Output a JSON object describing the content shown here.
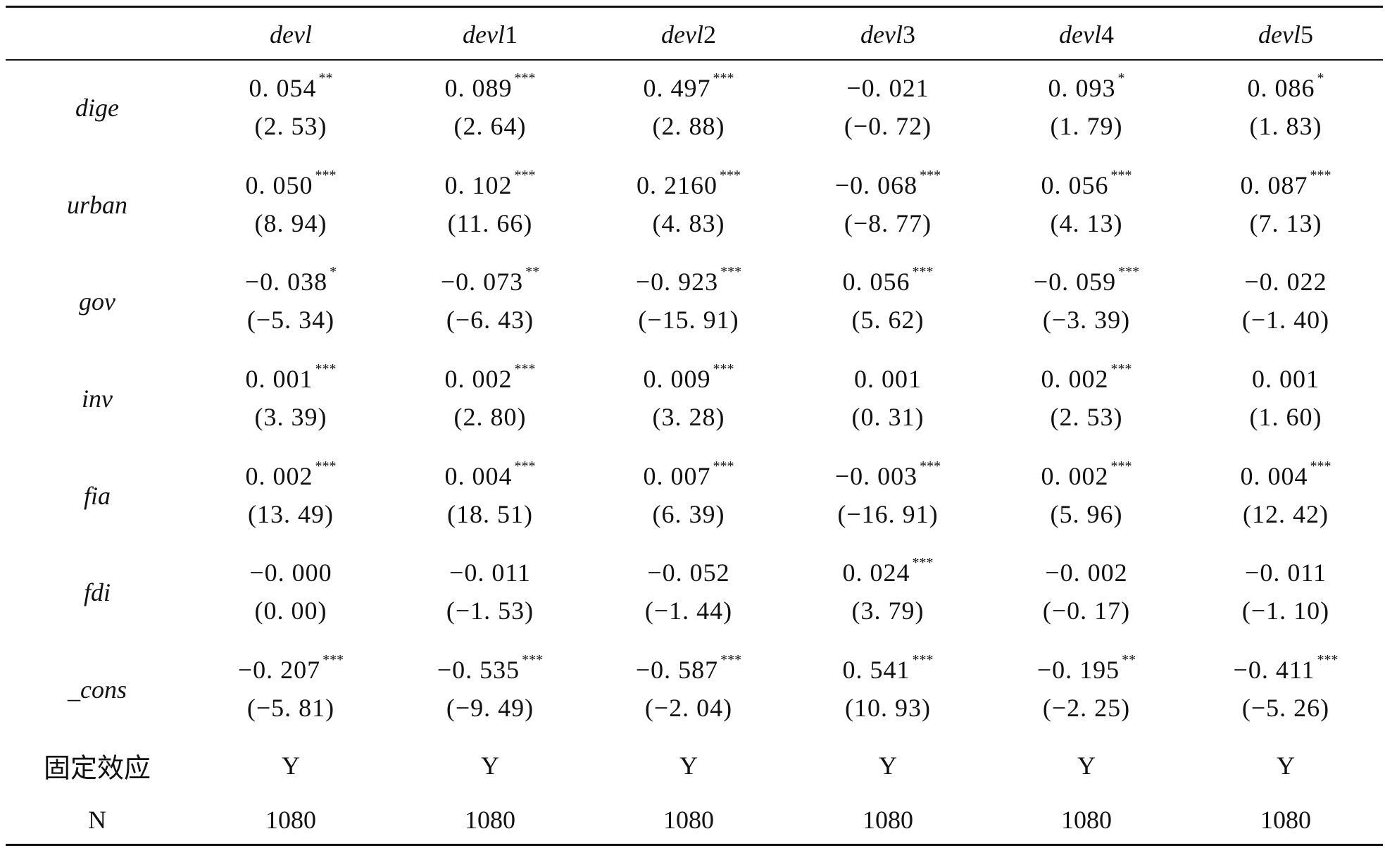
{
  "table": {
    "columns": [
      {
        "base": "devl",
        "num": ""
      },
      {
        "base": "devl",
        "num": "1"
      },
      {
        "base": "devl",
        "num": "2"
      },
      {
        "base": "devl",
        "num": "3"
      },
      {
        "base": "devl",
        "num": "4"
      },
      {
        "base": "devl",
        "num": "5"
      }
    ],
    "rows": [
      {
        "label": "dige",
        "cells": [
          {
            "coef": "0. 054",
            "stars": "**",
            "t": "(2. 53)"
          },
          {
            "coef": "0. 089",
            "stars": "***",
            "t": "(2. 64)"
          },
          {
            "coef": "0. 497",
            "stars": "***",
            "t": "(2. 88)"
          },
          {
            "coef": "−0. 021",
            "stars": "",
            "t": "(−0. 72)"
          },
          {
            "coef": "0. 093",
            "stars": "*",
            "t": "(1. 79)"
          },
          {
            "coef": "0. 086",
            "stars": "*",
            "t": "(1. 83)"
          }
        ]
      },
      {
        "label": "urban",
        "cells": [
          {
            "coef": "0. 050",
            "stars": "***",
            "t": "(8. 94)"
          },
          {
            "coef": "0. 102",
            "stars": "***",
            "t": "(11. 66)"
          },
          {
            "coef": "0. 2160",
            "stars": "***",
            "t": "(4. 83)"
          },
          {
            "coef": "−0. 068",
            "stars": "***",
            "t": "(−8. 77)"
          },
          {
            "coef": "0. 056",
            "stars": "***",
            "t": "(4. 13)"
          },
          {
            "coef": "0. 087",
            "stars": "***",
            "t": "(7. 13)"
          }
        ]
      },
      {
        "label": "gov",
        "cells": [
          {
            "coef": "−0. 038",
            "stars": "*",
            "t": "(−5. 34)"
          },
          {
            "coef": "−0. 073",
            "stars": "**",
            "t": "(−6. 43)"
          },
          {
            "coef": "−0. 923",
            "stars": "***",
            "t": "(−15. 91)"
          },
          {
            "coef": "0. 056",
            "stars": "***",
            "t": "(5. 62)"
          },
          {
            "coef": "−0. 059",
            "stars": "***",
            "t": "(−3. 39)"
          },
          {
            "coef": "−0. 022",
            "stars": "",
            "t": "(−1. 40)"
          }
        ]
      },
      {
        "label": "inv",
        "cells": [
          {
            "coef": "0. 001",
            "stars": "***",
            "t": "(3. 39)"
          },
          {
            "coef": "0. 002",
            "stars": "***",
            "t": "(2. 80)"
          },
          {
            "coef": "0. 009",
            "stars": "***",
            "t": "(3. 28)"
          },
          {
            "coef": "0. 001",
            "stars": "",
            "t": "(0. 31)"
          },
          {
            "coef": "0. 002",
            "stars": "***",
            "t": "(2. 53)"
          },
          {
            "coef": "0. 001",
            "stars": "",
            "t": "(1. 60)"
          }
        ]
      },
      {
        "label": "fia",
        "cells": [
          {
            "coef": "0. 002",
            "stars": "***",
            "t": "(13. 49)"
          },
          {
            "coef": "0. 004",
            "stars": "***",
            "t": "(18. 51)"
          },
          {
            "coef": "0. 007",
            "stars": "***",
            "t": "(6. 39)"
          },
          {
            "coef": "−0. 003",
            "stars": "***",
            "t": "(−16. 91)"
          },
          {
            "coef": "0. 002",
            "stars": "***",
            "t": "(5. 96)"
          },
          {
            "coef": "0. 004",
            "stars": "***",
            "t": "(12. 42)"
          }
        ]
      },
      {
        "label": "fdi",
        "cells": [
          {
            "coef": "−0. 000",
            "stars": "",
            "t": "(0. 00)"
          },
          {
            "coef": "−0. 011",
            "stars": "",
            "t": "(−1. 53)"
          },
          {
            "coef": "−0. 052",
            "stars": "",
            "t": "(−1. 44)"
          },
          {
            "coef": "0. 024",
            "stars": "***",
            "t": "(3. 79)"
          },
          {
            "coef": "−0. 002",
            "stars": "",
            "t": "(−0. 17)"
          },
          {
            "coef": "−0. 011",
            "stars": "",
            "t": "(−1. 10)"
          }
        ]
      },
      {
        "label": "_cons",
        "cells": [
          {
            "coef": "−0. 207",
            "stars": "***",
            "t": "(−5. 81)"
          },
          {
            "coef": "−0. 535",
            "stars": "***",
            "t": "(−9. 49)"
          },
          {
            "coef": "−0. 587",
            "stars": "***",
            "t": "(−2. 04)"
          },
          {
            "coef": "0. 541",
            "stars": "***",
            "t": "(10. 93)"
          },
          {
            "coef": "−0. 195",
            "stars": "**",
            "t": "(−2. 25)"
          },
          {
            "coef": "−0. 411",
            "stars": "***",
            "t": "(−5. 26)"
          }
        ]
      }
    ],
    "fixed_effects": {
      "label": "固定效应",
      "values": [
        "Y",
        "Y",
        "Y",
        "Y",
        "Y",
        "Y"
      ]
    },
    "n_row": {
      "label": "N",
      "values": [
        "1080",
        "1080",
        "1080",
        "1080",
        "1080",
        "1080"
      ]
    }
  }
}
